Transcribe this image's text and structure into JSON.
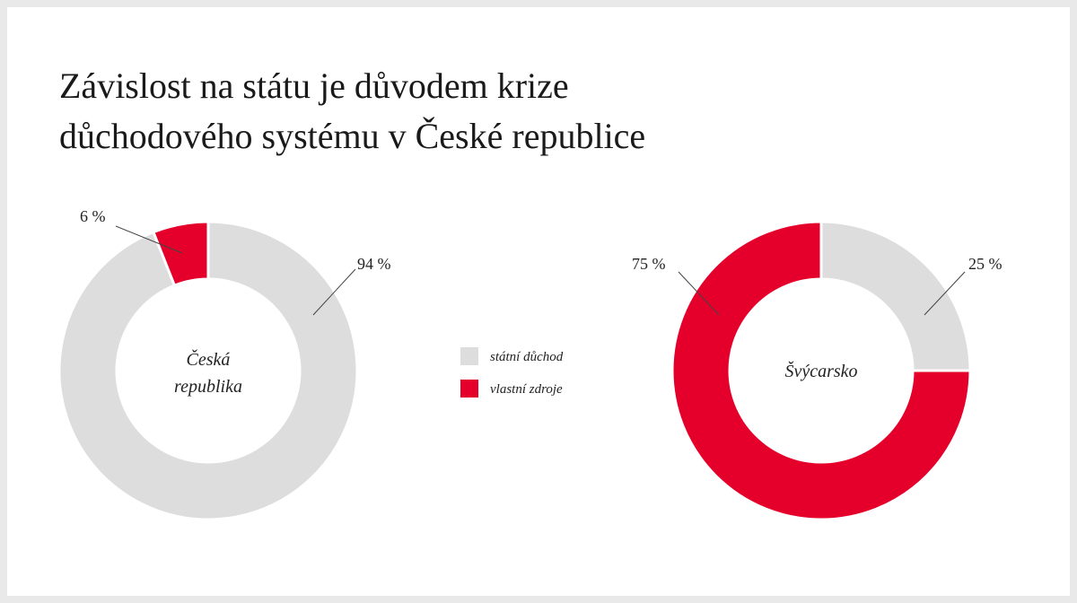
{
  "title": {
    "line1": "Závislost na státu je důvodem krize",
    "line2": "důchodového systému v České republice"
  },
  "colors": {
    "statni": "#dddddd",
    "vlastni": "#e4002b"
  },
  "chart_data": [
    {
      "type": "pie",
      "center_label": [
        "Česká",
        "republika"
      ],
      "labels": [
        "státní důchod",
        "vlastní zdroje"
      ],
      "values": [
        94,
        6
      ],
      "value_labels": [
        "94 %",
        "6 %"
      ]
    },
    {
      "type": "pie",
      "center_label": [
        "Švýcarsko"
      ],
      "labels": [
        "státní důchod",
        "vlastní zdroje"
      ],
      "values": [
        25,
        75
      ],
      "value_labels": [
        "25 %",
        "75 %"
      ]
    }
  ],
  "legend": [
    {
      "label": "státní důchod",
      "color": "#dddddd"
    },
    {
      "label": "vlastní zdroje",
      "color": "#e4002b"
    }
  ]
}
